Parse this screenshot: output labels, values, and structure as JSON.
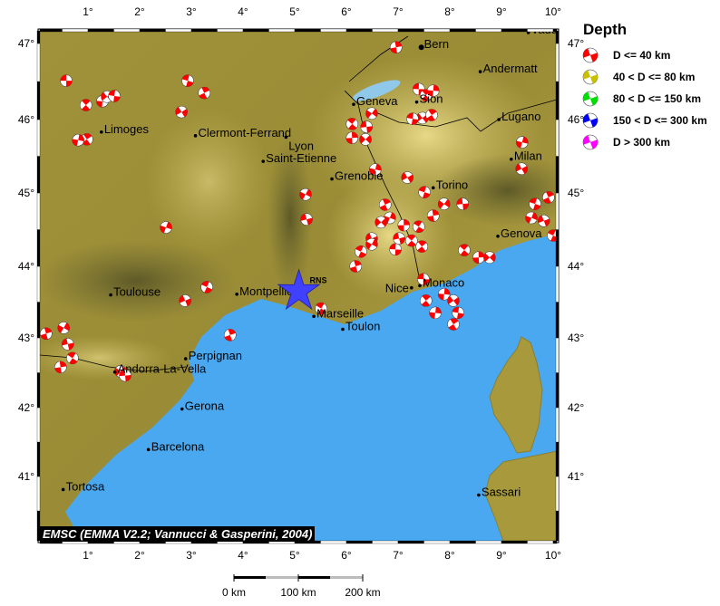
{
  "map": {
    "lon_range": [
      0.07,
      10.05
    ],
    "lat_range": [
      40.07,
      47.17
    ],
    "lon_ticks": [
      1,
      2,
      3,
      4,
      5,
      6,
      7,
      8,
      9,
      10
    ],
    "lat_ticks": [
      41,
      42,
      43,
      44,
      45,
      46,
      47
    ],
    "tick_suffix": "°",
    "colors": {
      "sea": "#4aa8f0",
      "land": "#a89a3c",
      "lowland": "#6e6a30",
      "mountain": "#d8c870",
      "border": "#000000"
    }
  },
  "legend": {
    "title": "Depth",
    "items": [
      {
        "label": "D <= 40 km",
        "color": "#ff0000"
      },
      {
        "label": "40 < D <= 80 km",
        "color": "#c8c000"
      },
      {
        "label": "80 < D <= 150 km",
        "color": "#00e000"
      },
      {
        "label": "150 < D <= 300 km",
        "color": "#0000ff"
      },
      {
        "label": "D > 300 km",
        "color": "#ff00ff"
      }
    ]
  },
  "station": {
    "label": "RNS",
    "lon": 5.08,
    "lat": 43.65,
    "color": "#4040ff",
    "icon": "star-icon"
  },
  "cities": [
    {
      "name": "Vaduz",
      "lon": 9.52,
      "lat": 47.14
    },
    {
      "name": "Bern",
      "lon": 7.45,
      "lat": 46.95
    },
    {
      "name": "Andermatt",
      "lon": 8.59,
      "lat": 46.63
    },
    {
      "name": "Geneva",
      "lon": 6.14,
      "lat": 46.2
    },
    {
      "name": "Sion",
      "lon": 7.36,
      "lat": 46.23
    },
    {
      "name": "Lugano",
      "lon": 8.95,
      "lat": 46.0
    },
    {
      "name": "Limoges",
      "lon": 1.26,
      "lat": 45.83
    },
    {
      "name": "Clermont-Ferrand",
      "lon": 3.08,
      "lat": 45.78
    },
    {
      "name": "Lyon",
      "lon": 4.83,
      "lat": 45.76
    },
    {
      "name": "Saint-Etienne",
      "lon": 4.39,
      "lat": 45.43
    },
    {
      "name": "Grenoble",
      "lon": 5.72,
      "lat": 45.19
    },
    {
      "name": "Milan",
      "lon": 9.19,
      "lat": 45.46
    },
    {
      "name": "Torino",
      "lon": 7.68,
      "lat": 45.07
    },
    {
      "name": "Genova",
      "lon": 8.93,
      "lat": 44.41
    },
    {
      "name": "Toulouse",
      "lon": 1.44,
      "lat": 43.6
    },
    {
      "name": "Montpellier",
      "lon": 3.88,
      "lat": 43.61
    },
    {
      "name": "Marseille",
      "lon": 5.37,
      "lat": 43.3
    },
    {
      "name": "Toulon",
      "lon": 5.93,
      "lat": 43.12
    },
    {
      "name": "Monaco",
      "lon": 7.42,
      "lat": 43.73
    },
    {
      "name": "Nice",
      "lon": 7.26,
      "lat": 43.7
    },
    {
      "name": "Perpignan",
      "lon": 2.89,
      "lat": 42.7
    },
    {
      "name": "Andorra-La-Vella",
      "lon": 1.52,
      "lat": 42.51
    },
    {
      "name": "Gerona",
      "lon": 2.82,
      "lat": 41.98
    },
    {
      "name": "Barcelona",
      "lon": 2.17,
      "lat": 41.39
    },
    {
      "name": "Tortosa",
      "lon": 0.52,
      "lat": 40.81
    },
    {
      "name": "Sassari",
      "lon": 8.56,
      "lat": 40.73
    }
  ],
  "events_depth_class": "D <= 40 km",
  "events": [
    [
      0.58,
      46.51
    ],
    [
      0.96,
      46.19
    ],
    [
      1.28,
      46.24
    ],
    [
      1.37,
      46.3
    ],
    [
      1.51,
      46.31
    ],
    [
      0.98,
      45.73
    ],
    [
      0.81,
      45.72
    ],
    [
      2.81,
      46.1
    ],
    [
      2.93,
      46.51
    ],
    [
      3.25,
      46.35
    ],
    [
      2.51,
      44.53
    ],
    [
      2.88,
      43.52
    ],
    [
      3.3,
      43.71
    ],
    [
      3.75,
      43.04
    ],
    [
      5.21,
      44.98
    ],
    [
      5.23,
      44.64
    ],
    [
      5.51,
      43.41
    ],
    [
      6.96,
      46.95
    ],
    [
      6.49,
      46.08
    ],
    [
      6.39,
      45.9
    ],
    [
      6.11,
      45.94
    ],
    [
      6.11,
      45.75
    ],
    [
      6.37,
      45.73
    ],
    [
      7.4,
      46.4
    ],
    [
      7.54,
      46.32
    ],
    [
      7.68,
      46.38
    ],
    [
      7.47,
      46.02
    ],
    [
      7.28,
      46.01
    ],
    [
      7.65,
      46.06
    ],
    [
      6.56,
      45.32
    ],
    [
      7.18,
      45.21
    ],
    [
      7.51,
      45.01
    ],
    [
      6.75,
      44.84
    ],
    [
      6.84,
      44.66
    ],
    [
      6.49,
      44.38
    ],
    [
      6.28,
      44.2
    ],
    [
      6.18,
      44.0
    ],
    [
      6.49,
      44.3
    ],
    [
      7.02,
      44.38
    ],
    [
      7.4,
      44.54
    ],
    [
      7.68,
      44.69
    ],
    [
      7.89,
      44.85
    ],
    [
      8.25,
      44.85
    ],
    [
      8.28,
      44.22
    ],
    [
      8.56,
      44.12
    ],
    [
      8.77,
      44.12
    ],
    [
      7.49,
      43.82
    ],
    [
      7.54,
      43.52
    ],
    [
      7.89,
      43.61
    ],
    [
      8.07,
      43.52
    ],
    [
      8.16,
      43.35
    ],
    [
      8.07,
      43.19
    ],
    [
      9.4,
      45.69
    ],
    [
      9.39,
      45.33
    ],
    [
      9.65,
      44.85
    ],
    [
      9.91,
      44.94
    ],
    [
      9.58,
      44.66
    ],
    [
      9.82,
      44.62
    ],
    [
      10.0,
      44.42
    ],
    [
      0.19,
      43.06
    ],
    [
      0.53,
      43.14
    ],
    [
      0.61,
      42.91
    ],
    [
      0.7,
      42.71
    ],
    [
      0.47,
      42.58
    ],
    [
      1.63,
      42.52
    ],
    [
      1.72,
      42.46
    ],
    [
      7.26,
      44.35
    ],
    [
      7.11,
      44.56
    ],
    [
      6.67,
      44.6
    ],
    [
      6.95,
      44.23
    ],
    [
      7.46,
      44.27
    ],
    [
      7.72,
      43.35
    ]
  ],
  "scale_bar": {
    "labels": [
      "0 km",
      "100 km",
      "200 km"
    ]
  },
  "credit": "EMSC (EMMA V2.2; Vannucci & Gasperini, 2004)"
}
